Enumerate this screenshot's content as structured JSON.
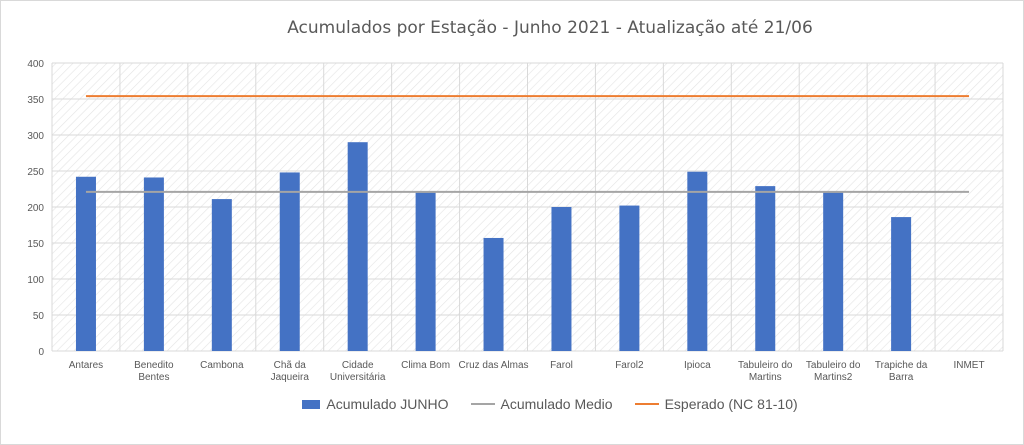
{
  "chart_data": {
    "type": "bar",
    "title": "Acumulados por Estação - Junho 2021 - Atualização até 21/06",
    "categories": [
      [
        "Antares"
      ],
      [
        "Benedito",
        "Bentes"
      ],
      [
        "Cambona"
      ],
      [
        "Chã da",
        "Jaqueira"
      ],
      [
        "Cidade",
        "Universitária"
      ],
      [
        "Clima Bom"
      ],
      [
        "Cruz das Almas"
      ],
      [
        "Farol"
      ],
      [
        "Farol2"
      ],
      [
        "Ipioca"
      ],
      [
        "Tabuleiro do",
        "Martins"
      ],
      [
        "Tabuleiro do",
        "Martins2"
      ],
      [
        "Trapiche da",
        "Barra"
      ],
      [
        "INMET"
      ]
    ],
    "series": [
      {
        "name": "Acumulado JUNHO",
        "type": "bar",
        "color": "#4472c4",
        "values": [
          242,
          241,
          211,
          248,
          290,
          220,
          157,
          200,
          202,
          249,
          229,
          220,
          186,
          0
        ]
      },
      {
        "name": "Acumulado Medio",
        "type": "line",
        "color": "#a5a5a5",
        "values": [
          221,
          221,
          221,
          221,
          221,
          221,
          221,
          221,
          221,
          221,
          221,
          221,
          221,
          221
        ]
      },
      {
        "name": "Esperado (NC 81-10)",
        "type": "line",
        "color": "#ed7d31",
        "values": [
          354,
          354,
          354,
          354,
          354,
          354,
          354,
          354,
          354,
          354,
          354,
          354,
          354,
          354
        ]
      }
    ],
    "yticks": [
      0,
      50,
      100,
      150,
      200,
      250,
      300,
      350,
      400
    ],
    "ylim": [
      0,
      400
    ],
    "grid": true,
    "legend": "bottom",
    "xlabel": "",
    "ylabel": ""
  }
}
